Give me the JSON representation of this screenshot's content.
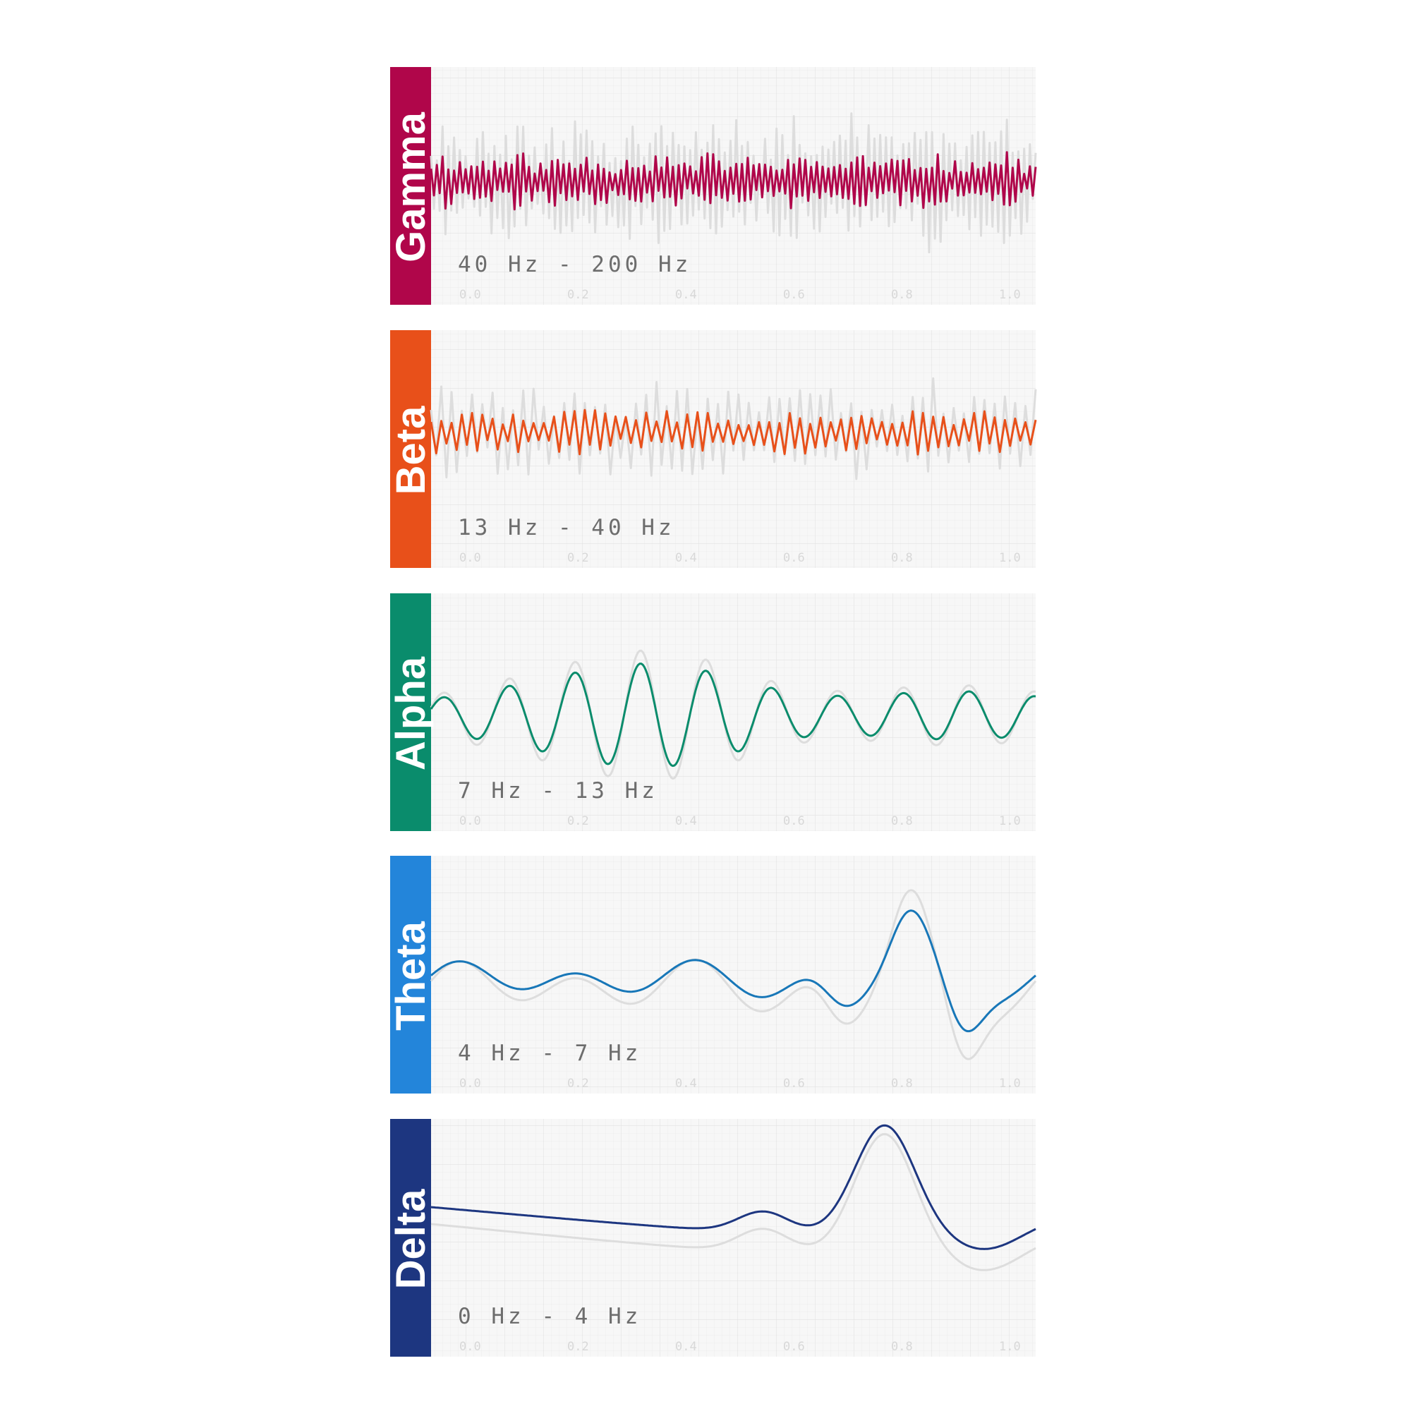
{
  "panels": [
    {
      "id": "gamma",
      "label": "Gamma",
      "range": "40 Hz - 200 Hz",
      "color": "#B0064A",
      "wave_icon": "high-frequency-wave",
      "ticks": [
        "0.0",
        "0.2",
        "0.4",
        "0.6",
        "0.8",
        "1.0"
      ]
    },
    {
      "id": "beta",
      "label": "Beta",
      "range": "13 Hz - 40 Hz",
      "color": "#E8501A",
      "wave_icon": "fast-wave",
      "ticks": [
        "0.0",
        "0.2",
        "0.4",
        "0.6",
        "0.8",
        "1.0"
      ]
    },
    {
      "id": "alpha",
      "label": "Alpha",
      "range": "7 Hz - 13 Hz",
      "color": "#0A8C6C",
      "wave_icon": "medium-wave",
      "ticks": [
        "0.0",
        "0.2",
        "0.4",
        "0.6",
        "0.8",
        "1.0"
      ]
    },
    {
      "id": "theta",
      "label": "Theta",
      "range": "4 Hz - 7 Hz",
      "color": "#2385DA",
      "line_color": "#1877B8",
      "wave_icon": "slow-wave",
      "ticks": [
        "0.0",
        "0.2",
        "0.4",
        "0.6",
        "0.8",
        "1.0"
      ]
    },
    {
      "id": "delta",
      "label": "Delta",
      "range": "0 Hz - 4 Hz",
      "color": "#1D3680",
      "wave_icon": "very-slow-wave",
      "ticks": [
        "0.0",
        "0.2",
        "0.4",
        "0.6",
        "0.8",
        "1.0"
      ]
    }
  ]
}
